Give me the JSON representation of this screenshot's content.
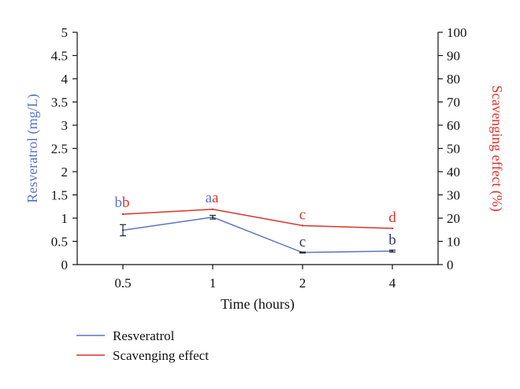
{
  "chart_data": {
    "type": "line",
    "x_axis": {
      "label": "Time (hours)",
      "categories": [
        "0.5",
        "1",
        "2",
        "4"
      ]
    },
    "y_left": {
      "label": "Resveratrol (mg/L)",
      "range": [
        0,
        5
      ],
      "ticks": [
        "0",
        "0.5",
        "1",
        "1.5",
        "2",
        "2.5",
        "3",
        "3.5",
        "4",
        "4.5",
        "5"
      ],
      "color": "#5b74c4"
    },
    "y_right": {
      "label": "Scavenging effect (%)",
      "range": [
        0,
        100
      ],
      "ticks": [
        "0",
        "10",
        "20",
        "30",
        "40",
        "50",
        "60",
        "70",
        "80",
        "90",
        "100"
      ],
      "color": "#d9342b"
    },
    "series": [
      {
        "name": "Resveratrol",
        "axis": "left",
        "color": "#5b74c4",
        "values": [
          0.74,
          1.02,
          0.26,
          0.29
        ],
        "errors": [
          0.12,
          0.04,
          0.01,
          0.02
        ],
        "letters": [
          "b",
          "a",
          "c",
          "b"
        ],
        "letter_color": "#5b74c4",
        "letter_colors": [
          "#5b74c4",
          "#5b74c4",
          "#2c3a63",
          "#2c3a63"
        ]
      },
      {
        "name": "Scavenging effect",
        "axis": "right",
        "color": "#d9342b",
        "values": [
          21.7,
          23.8,
          16.8,
          15.6
        ],
        "letters": [
          "b",
          "a",
          "c",
          "d"
        ],
        "letter_colors": [
          "#d9342b",
          "#d9342b",
          "#d9342b",
          "#d9342b"
        ]
      }
    ],
    "grid": false,
    "legend": "bottom-left"
  }
}
